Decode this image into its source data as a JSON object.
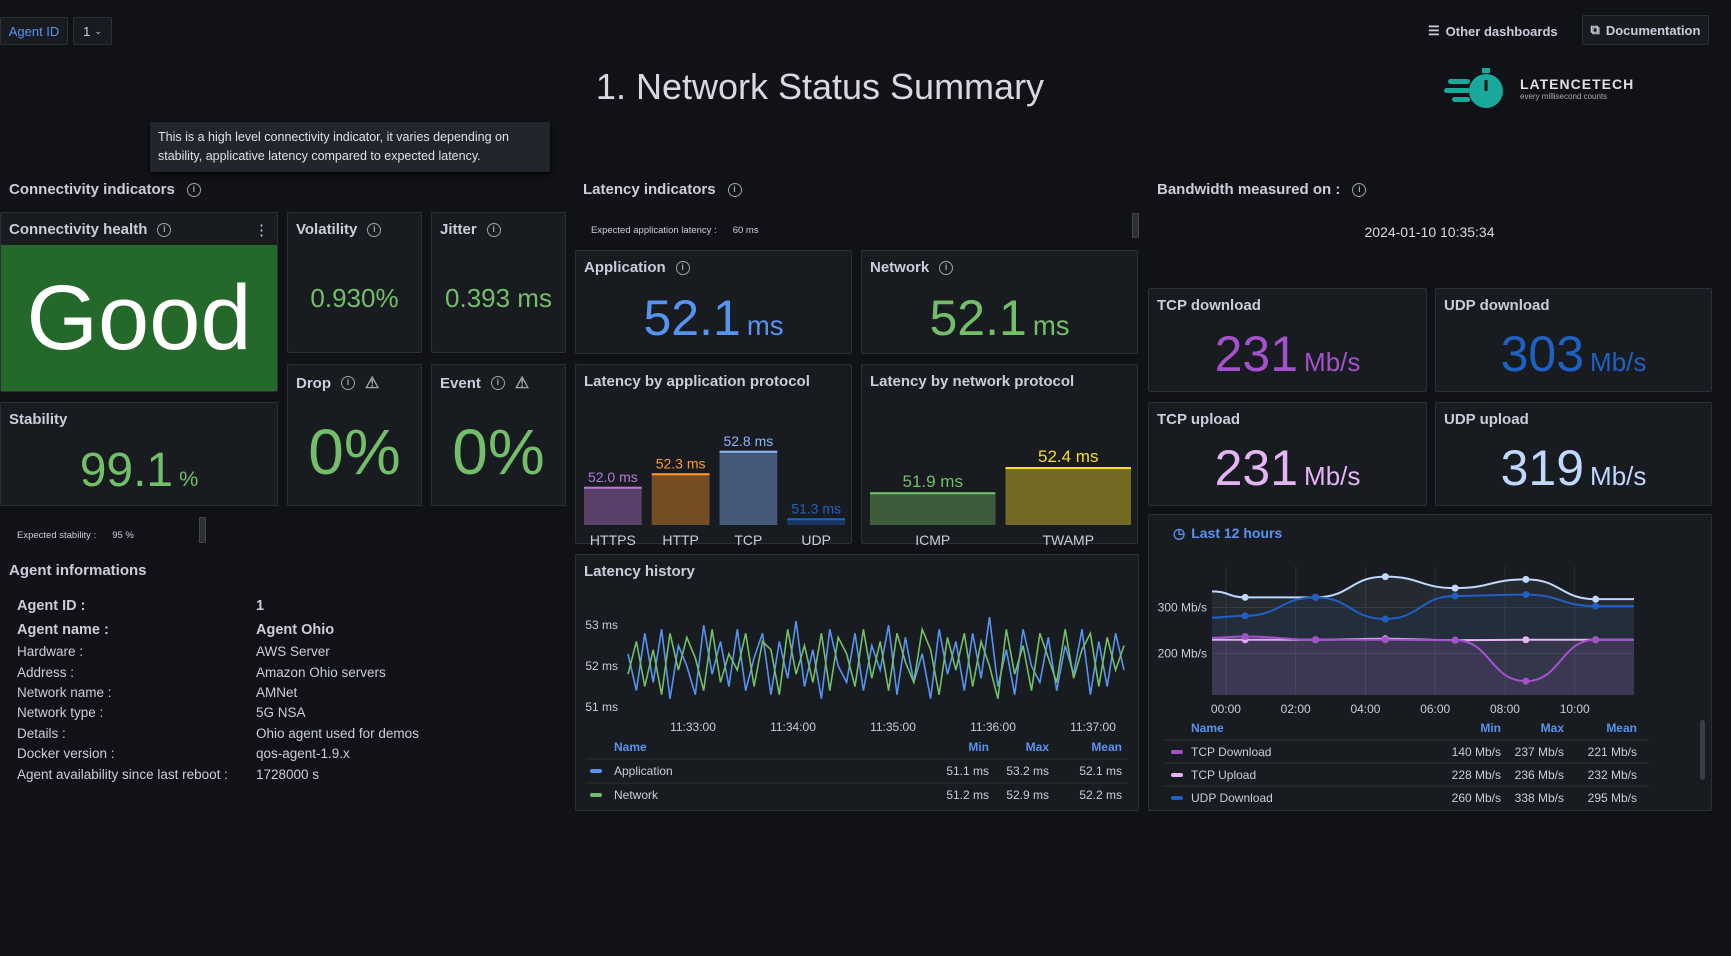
{
  "header": {
    "agent_id_label": "Agent ID",
    "agent_id_value": "1",
    "title": "1. Network Status Summary",
    "other_dashboards": "Other dashboards",
    "documentation": "Documentation",
    "logo_name": "LATENCETECH",
    "logo_tagline": "every millisecond counts"
  },
  "connectivity": {
    "section_title": "Connectivity indicators",
    "health_title": "Connectivity health",
    "health_value": "Good",
    "health_color": "#25692a",
    "tooltip": "This is a high level connectivity indicator, it varies depending on stability, applicative latency compared to expected latency.",
    "volatility_title": "Volatility",
    "volatility_value": "0.930%",
    "jitter_title": "Jitter",
    "jitter_value": "0.393 ms",
    "drop_title": "Drop",
    "drop_value": "0%",
    "event_title": "Event",
    "event_value": "0%",
    "stability_title": "Stability",
    "stability_value": "99.1",
    "stability_unit": "%",
    "expected_stability_label": "Expected stability :",
    "expected_stability_value": "95 %"
  },
  "agent": {
    "section_title": "Agent informations",
    "rows": [
      {
        "label": "Agent ID :",
        "value": "1",
        "bold": true
      },
      {
        "label": "Agent name :",
        "value": "Agent Ohio",
        "bold": true
      },
      {
        "label": "Hardware :",
        "value": "AWS Server"
      },
      {
        "label": "Address :",
        "value": "Amazon Ohio servers"
      },
      {
        "label": "Network name :",
        "value": "AMNet"
      },
      {
        "label": "Network type :",
        "value": "5G NSA"
      },
      {
        "label": "Details :",
        "value": "Ohio agent used for demos"
      },
      {
        "label": "Docker version :",
        "value": "qos-agent-1.9.x"
      },
      {
        "label": "Agent availability since last reboot :",
        "value": "1728000 s"
      }
    ]
  },
  "latency": {
    "section_title": "Latency indicators",
    "expected_label": "Expected application latency :",
    "expected_value": "60 ms",
    "application_title": "Application",
    "application_value": "52.1",
    "application_unit": "ms",
    "network_title": "Network",
    "network_value": "52.1",
    "network_unit": "ms",
    "app_protocol_title": "Latency by application protocol",
    "net_protocol_title": "Latency by network protocol",
    "history_title": "Latency history"
  },
  "bandwidth": {
    "section_title": "Bandwidth measured on :",
    "date": "2024-01-10 10:35:34",
    "tcp_download_title": "TCP download",
    "tcp_download_value": "231",
    "udp_download_title": "UDP download",
    "udp_download_value": "303",
    "tcp_upload_title": "TCP upload",
    "tcp_upload_value": "231",
    "udp_upload_title": "UDP upload",
    "udp_upload_value": "319",
    "unit": "Mb/s",
    "time_range": "Last 12 hours"
  },
  "chart_data": [
    {
      "type": "bar",
      "categories": [
        "HTTPS",
        "HTTP",
        "TCP",
        "UDP"
      ],
      "values": [
        52.0,
        52.3,
        52.8,
        51.3
      ],
      "labels": [
        "52.0 ms",
        "52.3 ms",
        "52.8 ms",
        "51.3 ms"
      ],
      "colors": [
        "#b877d9",
        "#ff9830",
        "#8ab8ff",
        "#1f60c4"
      ],
      "ylim": [
        51.15,
        53.0
      ]
    },
    {
      "type": "bar",
      "categories": [
        "ICMP",
        "TWAMP"
      ],
      "values": [
        51.9,
        52.4
      ],
      "labels": [
        "51.9 ms",
        "52.4 ms"
      ],
      "colors": [
        "#73bf69",
        "#fade2a"
      ],
      "ylim": [
        51.25,
        53.0
      ]
    },
    {
      "type": "line",
      "yticks": [
        "53 ms",
        "52 ms",
        "51 ms"
      ],
      "ylim": [
        50.9,
        53.2
      ],
      "xticks": [
        "11:33:00",
        "11:34:00",
        "11:35:00",
        "11:36:00",
        "11:37:00"
      ],
      "legend_headers": [
        "Name",
        "Min",
        "Max",
        "Mean"
      ],
      "series": [
        {
          "name": "Application",
          "color": "#5794f2",
          "min": "51.1 ms",
          "max": "53.2 ms",
          "mean": "52.1 ms",
          "values": [
            52.3,
            51.4,
            52.8,
            51.6,
            52.9,
            51.2,
            52.5,
            52.0,
            51.3,
            53.0,
            51.8,
            52.6,
            51.5,
            52.9,
            51.4,
            52.2,
            52.8,
            51.3,
            52.6,
            51.7,
            53.1,
            51.5,
            52.4,
            51.2,
            52.9,
            52.0,
            51.6,
            52.8,
            51.4,
            52.5,
            51.9,
            53.0,
            51.3,
            52.7,
            51.6,
            52.3,
            51.2,
            52.9,
            51.8,
            52.6,
            51.4,
            52.8,
            51.7,
            53.2,
            51.5,
            52.4,
            51.3,
            52.9,
            52.0,
            51.6,
            52.7,
            51.4,
            52.5,
            51.8,
            52.9,
            51.3,
            52.6,
            51.5,
            52.8,
            51.9
          ]
        },
        {
          "name": "Network",
          "color": "#73bf69",
          "min": "51.2 ms",
          "max": "52.9 ms",
          "mean": "52.2 ms",
          "values": [
            51.8,
            52.6,
            51.5,
            52.4,
            51.3,
            52.8,
            51.9,
            52.7,
            52.2,
            51.4,
            52.9,
            51.6,
            52.3,
            51.9,
            52.8,
            51.5,
            52.6,
            52.4,
            51.3,
            52.9,
            51.8,
            52.5,
            51.6,
            52.8,
            51.4,
            52.7,
            52.3,
            51.5,
            52.9,
            51.7,
            52.6,
            51.4,
            52.8,
            52.1,
            51.6,
            52.9,
            52.4,
            51.3,
            52.7,
            51.9,
            52.8,
            51.5,
            52.6,
            52.0,
            51.2,
            52.9,
            51.8,
            52.5,
            51.4,
            52.8,
            52.2,
            51.6,
            52.9,
            51.7,
            52.4,
            52.8,
            51.5,
            52.7,
            51.9,
            52.5
          ]
        }
      ]
    },
    {
      "type": "line",
      "x_hours": [
        -0.4,
        0.55,
        2.57,
        4.57,
        6.57,
        8.6,
        10.6,
        11.7
      ],
      "xticks": [
        "00:00",
        "02:00",
        "04:00",
        "06:00",
        "08:00",
        "10:00"
      ],
      "yticks": [
        "300 Mb/s",
        "200 Mb/s"
      ],
      "ylim": [
        110,
        390
      ],
      "legend_headers": [
        "Name",
        "Min",
        "Max",
        "Mean"
      ],
      "series": [
        {
          "name": "TCP Download",
          "color": "#a352cc",
          "min": "140 Mb/s",
          "max": "237 Mb/s",
          "mean": "221 Mb/s",
          "values": [
            234,
            237,
            230,
            230,
            229,
            140,
            230,
            230
          ]
        },
        {
          "name": "TCP Upload",
          "color": "#e5b4f5",
          "min": "228 Mb/s",
          "max": "236 Mb/s",
          "mean": "232 Mb/s",
          "values": [
            230,
            230,
            230,
            232,
            229,
            230,
            230,
            230
          ]
        },
        {
          "name": "UDP Download",
          "color": "#1f60c4",
          "min": "260 Mb/s",
          "max": "338 Mb/s",
          "mean": "295 Mb/s",
          "values": [
            278,
            282,
            322,
            275,
            325,
            328,
            303,
            303
          ]
        },
        {
          "name": "",
          "color": "#c0d8ff",
          "values": [
            335,
            322,
            322,
            367,
            342,
            361,
            318,
            318
          ]
        }
      ]
    }
  ]
}
